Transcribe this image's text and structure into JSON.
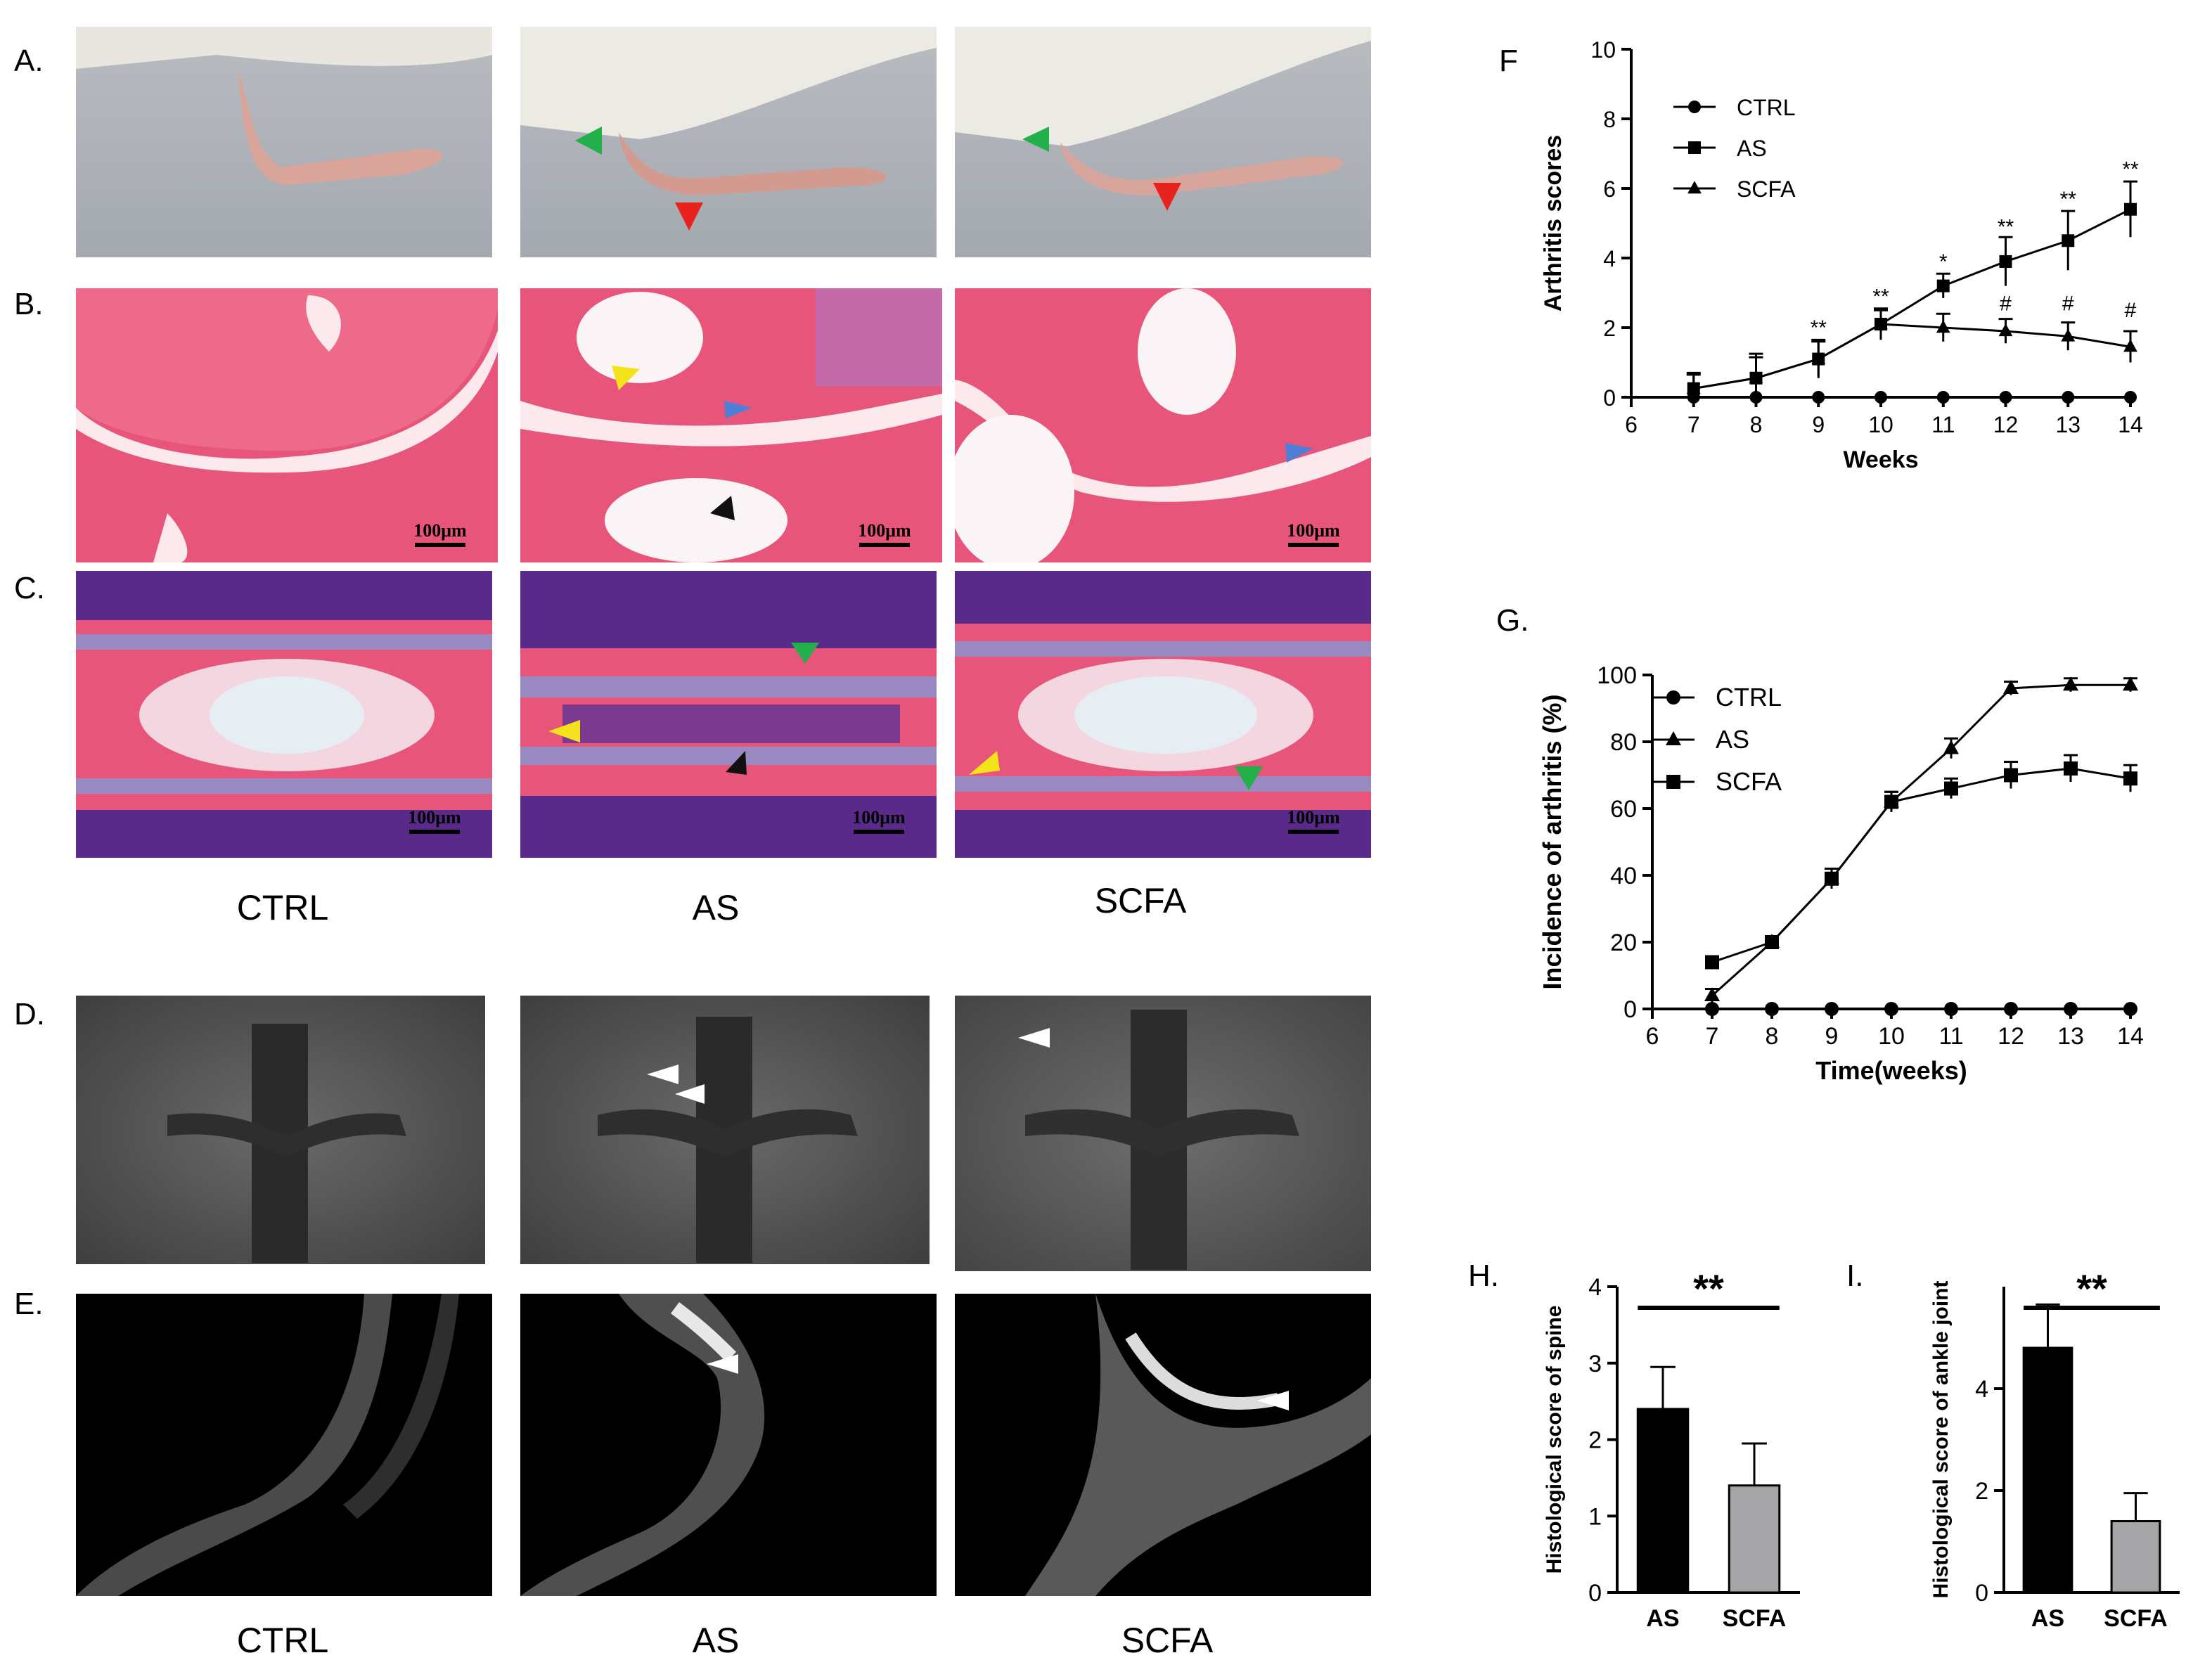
{
  "panel_labels": {
    "a": "A.",
    "b": "B.",
    "c": "C.",
    "d": "D.",
    "e": "E.",
    "f": "F",
    "g": "G.",
    "h": "H.",
    "i": "I."
  },
  "group_labels_top": [
    "CTRL",
    "AS",
    "SCFA"
  ],
  "group_labels_bottom": [
    "CTRL",
    "AS",
    "SCFA"
  ],
  "scale_bar_text": "100μm",
  "colors": {
    "he_pink": "#e9587a",
    "marrow_purple": "#5a2a8a",
    "fat_white": "#f5eef2",
    "paw_bg": "#a9aeb4",
    "mri_gray": "#5a5a5a",
    "arrow_green": "#22b04a",
    "arrow_red": "#e8231e",
    "arrow_yellow": "#f4e31a",
    "arrow_blue": "#4f7fd6",
    "arrow_black": "#111111",
    "arrow_white": "#ffffff",
    "bar_black": "#000000",
    "bar_gray": "#a5a5a7"
  },
  "chart_data": [
    {
      "id": "F",
      "type": "line",
      "xlabel": "Weeks",
      "ylabel": "Arthritis scores",
      "xlim": [
        6,
        14
      ],
      "ylim": [
        0,
        10
      ],
      "xticks": [
        "6",
        "7",
        "8",
        "9",
        "10",
        "11",
        "12",
        "13",
        "14"
      ],
      "yticks": [
        "0",
        "2",
        "4",
        "6",
        "8",
        "10"
      ],
      "legend": "top-left",
      "x": [
        7,
        8,
        9,
        10,
        11,
        12,
        13,
        14
      ],
      "series": [
        {
          "name": "CTRL",
          "marker": "circle",
          "values": [
            0,
            0,
            0,
            0,
            0,
            0,
            0,
            0
          ],
          "err": [
            0,
            0,
            0,
            0,
            0,
            0,
            0,
            0
          ]
        },
        {
          "name": "AS",
          "marker": "square",
          "values": [
            0.25,
            0.55,
            1.1,
            2.1,
            3.2,
            3.9,
            4.5,
            5.4
          ],
          "err": [
            0.45,
            0.7,
            0.55,
            0.45,
            0.35,
            0.7,
            0.85,
            0.8
          ]
        },
        {
          "name": "SCFA",
          "marker": "triangle",
          "values": [
            0.25,
            0.55,
            1.1,
            2.1,
            2.0,
            1.9,
            1.75,
            1.45
          ],
          "err": [
            0.4,
            0.6,
            0.5,
            0.4,
            0.4,
            0.35,
            0.4,
            0.45
          ]
        }
      ],
      "annotations": [
        {
          "x": 9,
          "y": 1.8,
          "text": "**"
        },
        {
          "x": 10,
          "y": 2.7,
          "text": "**"
        },
        {
          "x": 11,
          "y": 3.7,
          "text": "*"
        },
        {
          "x": 12,
          "y": 4.7,
          "text": "**"
        },
        {
          "x": 13,
          "y": 5.5,
          "text": "**"
        },
        {
          "x": 14,
          "y": 6.35,
          "text": "**"
        },
        {
          "x": 12,
          "y": 2.5,
          "text": "#"
        },
        {
          "x": 13,
          "y": 2.5,
          "text": "#"
        },
        {
          "x": 14,
          "y": 2.3,
          "text": "#"
        }
      ]
    },
    {
      "id": "G",
      "type": "line",
      "xlabel": "Time(weeks)",
      "ylabel": "Incidence of arthritis (%)",
      "xlim": [
        6,
        14
      ],
      "ylim": [
        0,
        100
      ],
      "xticks": [
        "6",
        "7",
        "8",
        "9",
        "10",
        "11",
        "12",
        "13",
        "14"
      ],
      "yticks": [
        "0",
        "20",
        "40",
        "60",
        "80",
        "100"
      ],
      "legend": "top-left",
      "x": [
        7,
        8,
        9,
        10,
        11,
        12,
        13,
        14
      ],
      "series": [
        {
          "name": "CTRL",
          "marker": "circle",
          "values": [
            0,
            0,
            0,
            0,
            0,
            0,
            0,
            0
          ],
          "err": [
            0,
            0,
            0,
            0,
            0,
            0,
            0,
            0
          ]
        },
        {
          "name": "AS",
          "marker": "triangle",
          "values": [
            4,
            20,
            39,
            62,
            78,
            96,
            97,
            97
          ],
          "err": [
            2,
            1,
            3,
            3,
            3,
            2,
            2,
            2
          ]
        },
        {
          "name": "SCFA",
          "marker": "square",
          "values": [
            14,
            20,
            39,
            62,
            66,
            70,
            72,
            69
          ],
          "err": [
            1,
            1,
            3,
            3,
            3,
            4,
            4,
            4
          ]
        }
      ]
    },
    {
      "id": "H",
      "type": "bar",
      "categories": [
        "AS",
        "SCFA"
      ],
      "values": [
        2.4,
        1.4
      ],
      "err": [
        0.55,
        0.55
      ],
      "ylabel": "Histological score of spine",
      "ylim": [
        0,
        4
      ],
      "yticks": [
        "0",
        "1",
        "2",
        "3",
        "4"
      ],
      "significance": "**"
    },
    {
      "id": "I",
      "type": "bar",
      "categories": [
        "AS",
        "SCFA"
      ],
      "values": [
        4.8,
        1.4
      ],
      "err": [
        0.85,
        0.55
      ],
      "ylabel": "Histological score of ankle joint",
      "ylim": [
        0,
        6
      ],
      "yticks": [
        "0",
        "2",
        "4"
      ],
      "significance": "**"
    }
  ]
}
